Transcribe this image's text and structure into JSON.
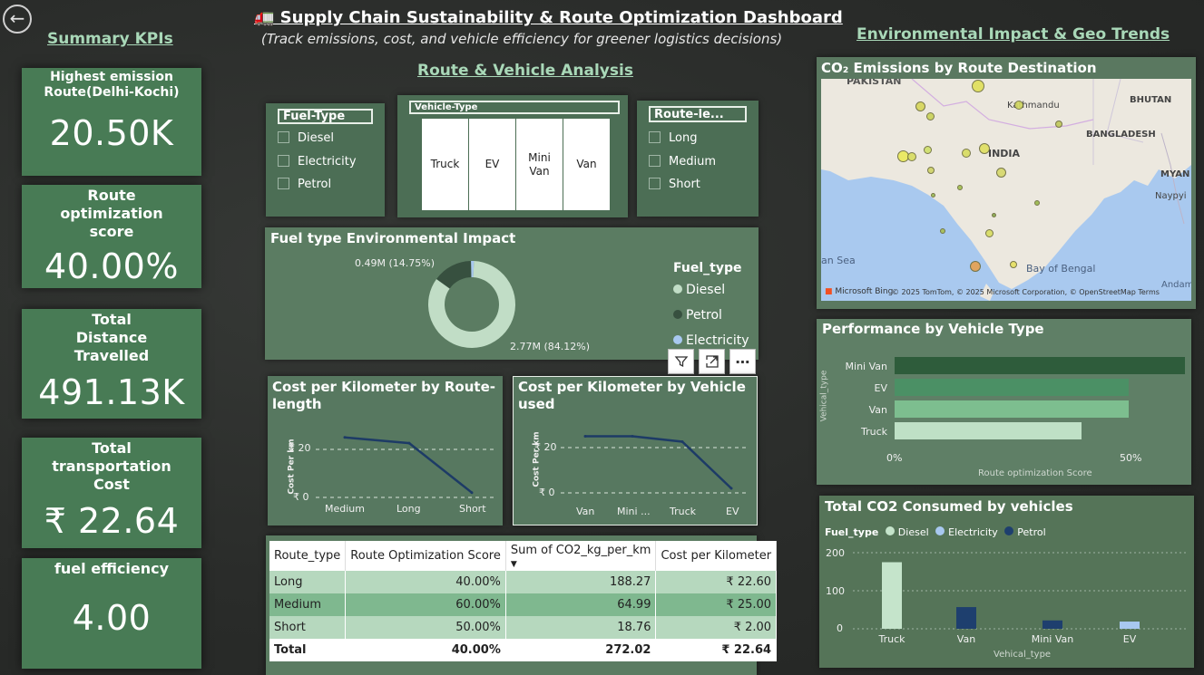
{
  "header": {
    "title": "🚛 Supply Chain Sustainability & Route Optimization Dashboard",
    "subtitle": "(Track emissions, cost, and vehicle efficiency for greener logistics decisions)",
    "back_icon": "←"
  },
  "sections": {
    "summary": "Summary KPIs",
    "route_vehicle": "Route & Vehicle Analysis ",
    "env_geo": "Environmental Impact & Geo Trends"
  },
  "kpis": [
    {
      "label": "Highest emission Route(Delhi-Kochi)",
      "value": "20.50K"
    },
    {
      "label": "Route optimization score",
      "value": "40.00%"
    },
    {
      "label": "Total Distance Travelled",
      "value": "491.13K"
    },
    {
      "label": "Total transportation Cost",
      "value": "₹ 22.64"
    },
    {
      "label": "fuel efficiency",
      "value": "4.00"
    }
  ],
  "slicers": {
    "fuel": {
      "title": "Fuel-Type",
      "options": [
        "Diesel",
        "Electricity",
        "Petrol"
      ]
    },
    "vehicle": {
      "title": "Vehicle-Type",
      "options": [
        "Truck",
        "EV",
        "Mini Van",
        "Van"
      ]
    },
    "route": {
      "title": "Route-le...",
      "options": [
        "Long",
        "Medium",
        "Short"
      ]
    }
  },
  "donut": {
    "title": "Fuel type Environmental Impact",
    "label_small": "0.49M (14.75%)",
    "label_large": "2.77M (84.12%)",
    "legend_title": "Fuel_type",
    "legend": [
      "Diesel",
      "Petrol",
      "Electricity"
    ],
    "colors": {
      "Diesel": "#c1ddc6",
      "Petrol": "#37503f",
      "Electricity": "#a8c8f0"
    }
  },
  "visual_actions": {
    "filter_icon": "filter-icon",
    "focus_icon": "focus-mode-icon",
    "more_icon": "⋯"
  },
  "cost_route": {
    "title": "Cost per Kilometer by Route-length",
    "ylabel": "Cost Per km",
    "ticks": [
      "₹ 20",
      "₹ 0"
    ],
    "x_labels": [
      "Medium",
      "Long",
      "Short"
    ]
  },
  "cost_vehicle": {
    "title": "Cost per Kilometer by Vehicle used",
    "ylabel": "Cost Per km",
    "ticks": [
      "₹ 20",
      "₹ 0"
    ],
    "x_labels": [
      "Van",
      "Mini ...",
      "Truck",
      "EV"
    ]
  },
  "table": {
    "headers": [
      "Route_type",
      "Route Optimization Score",
      "Sum of CO2_kg_per_km",
      "Cost per Kilometer"
    ],
    "sort_icon": "▼",
    "rows": [
      [
        "Long",
        "40.00%",
        "188.27",
        "₹ 22.60"
      ],
      [
        "Medium",
        "60.00%",
        "64.99",
        "₹ 25.00"
      ],
      [
        "Short",
        "50.00%",
        "18.76",
        "₹ 2.00"
      ]
    ],
    "total": [
      "Total",
      "40.00%",
      "272.02",
      "₹ 22.64"
    ]
  },
  "map": {
    "title": "CO₂ Emissions by Route Destination",
    "labels": {
      "pakistan": "PAKISTAN",
      "kathmandu": "Kathmandu",
      "bhutan": "BHUTAN",
      "india": "INDIA",
      "bangladesh": "BANGLADESH",
      "myanmar": "MYAN",
      "naypyidaw": "Naypyi",
      "arabian": "an Sea",
      "bay": "Bay of Bengal",
      "andaman": "Andama"
    },
    "attribution": "© 2025 TomTom, © 2025 Microsoft Corporation, © OpenStreetMap  Terms",
    "logo": "Microsoft Bing"
  },
  "performance": {
    "title": "Performance by Vehicle Type",
    "ylabel": "Vehical_type",
    "xlabel": "Route optimization Score",
    "ticks": [
      "0%",
      "50%"
    ]
  },
  "co2": {
    "title": "Total CO2 Consumed by vehicles",
    "legend_title": "Fuel_type",
    "legend": [
      "Diesel",
      "Electricity",
      "Petrol"
    ],
    "xlabel": "Vehical_type",
    "y_ticks": [
      "200",
      "100",
      "0"
    ]
  },
  "chart_data": [
    {
      "type": "pie",
      "title": "Fuel type Environmental Impact",
      "categories": [
        "Diesel",
        "Petrol",
        "Electricity"
      ],
      "values": [
        84.12,
        14.75,
        1.13
      ],
      "value_labels": [
        "2.77M (84.12%)",
        "0.49M (14.75%)",
        ""
      ],
      "legend": "right"
    },
    {
      "type": "line",
      "title": "Cost per Kilometer by Route-length",
      "categories": [
        "Medium",
        "Long",
        "Short"
      ],
      "values": [
        25.0,
        22.6,
        2.0
      ],
      "ylabel": "Cost Per km",
      "ylim": [
        0,
        30
      ]
    },
    {
      "type": "line",
      "title": "Cost per Kilometer by Vehicle used",
      "categories": [
        "Van",
        "Mini ...",
        "Truck",
        "EV"
      ],
      "values": [
        25.0,
        25.0,
        22.6,
        2.0
      ],
      "ylabel": "Cost Per km",
      "ylim": [
        0,
        30
      ]
    },
    {
      "type": "bar",
      "orientation": "horizontal",
      "title": "Performance by Vehicle Type",
      "categories": [
        "Mini Van",
        "EV",
        "Van",
        "Truck"
      ],
      "values": [
        62,
        50,
        50,
        40
      ],
      "colors": [
        "#2e5c3b",
        "#4b9065",
        "#7dbe8f",
        "#bfe0c6"
      ],
      "xlabel": "Route optimization Score",
      "ylabel": "Vehical_type",
      "xlim": [
        0,
        65
      ]
    },
    {
      "type": "bar",
      "title": "Total CO2 Consumed by vehicles",
      "categories": [
        "Truck",
        "Van",
        "Mini Van",
        "EV"
      ],
      "series": [
        {
          "name": "Diesel",
          "values": [
            175,
            0,
            0,
            0
          ],
          "color": "#c5e4cb"
        },
        {
          "name": "Electricity",
          "values": [
            0,
            0,
            0,
            19
          ],
          "color": "#a8c8f0"
        },
        {
          "name": "Petrol",
          "values": [
            0,
            57,
            22,
            0
          ],
          "color": "#1e3f6e"
        }
      ],
      "xlabel": "Vehical_type",
      "ylim": [
        0,
        200
      ],
      "legend": "top-left"
    }
  ]
}
